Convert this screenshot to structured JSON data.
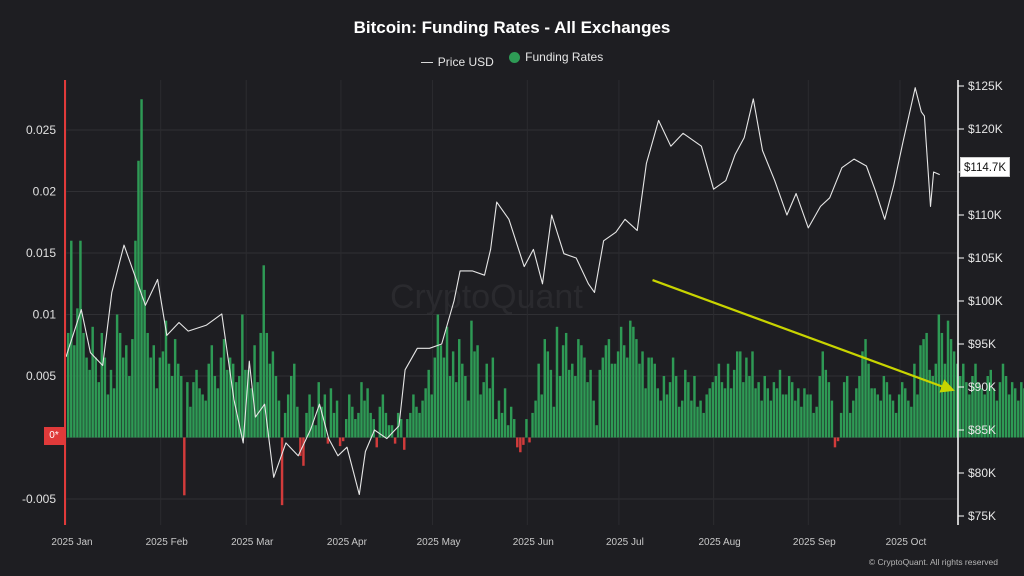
{
  "chart_data": {
    "type": "bar",
    "title": "Bitcoin: Funding Rates - All Exchanges",
    "legend": [
      "Price USD",
      "Funding Rates"
    ],
    "legend_placement": "top-center",
    "grid": true,
    "colors": {
      "positive": "#2e9a55",
      "negative": "#d23b3b",
      "price": "#e6e6e6",
      "trend": "#c8d400",
      "zero_badge": "#e03a3a",
      "left_axis": "#e03a3a"
    },
    "x_ticks": [
      "2025 Jan",
      "2025 Feb",
      "2025 Mar",
      "2025 Apr",
      "2025 May",
      "2025 Jun",
      "2025 Jul",
      "2025 Aug",
      "2025 Sep",
      "2025 Oct"
    ],
    "y_left": {
      "range": [
        -0.006,
        0.028
      ],
      "ticks": [
        -0.005,
        0,
        0.005,
        0.01,
        0.015,
        0.02,
        0.025
      ],
      "tick_labels": [
        "-0.005",
        "0*",
        "0.005",
        "0.01",
        "0.015",
        "0.02",
        "0.025"
      ]
    },
    "y_right": {
      "range": [
        75000,
        125000
      ],
      "ticks": [
        75000,
        80000,
        85000,
        90000,
        95000,
        100000,
        105000,
        110000,
        115000,
        120000,
        125000
      ],
      "tick_labels": [
        "$75K",
        "$80K",
        "$85K",
        "$90K",
        "$95K",
        "$100K",
        "$105K",
        "$110K",
        "$115K",
        "$120K",
        "$125K"
      ]
    },
    "current_price_label": "$114.7K",
    "series": [
      {
        "name": "Funding Rates",
        "axis": "left",
        "x_start": "2025-01-01",
        "values": [
          0.0085,
          0.016,
          0.0075,
          0.0105,
          0.016,
          0.0085,
          0.0065,
          0.0055,
          0.009,
          0.0065,
          0.0045,
          0.0085,
          0.0065,
          0.0035,
          0.0055,
          0.004,
          0.01,
          0.0085,
          0.0065,
          0.0075,
          0.005,
          0.008,
          0.016,
          0.0225,
          0.0275,
          0.012,
          0.0085,
          0.0065,
          0.0075,
          0.004,
          0.0065,
          0.007,
          0.0095,
          0.006,
          0.005,
          0.008,
          0.006,
          0.005,
          -0.0047,
          0.0045,
          0.0025,
          0.0045,
          0.0055,
          0.004,
          0.0035,
          0.003,
          0.006,
          0.0075,
          0.005,
          0.004,
          0.0065,
          0.008,
          0.0055,
          0.0065,
          0.006,
          0.0045,
          0.005,
          0.01,
          0.0055,
          0.0055,
          0.004,
          0.0075,
          0.0045,
          0.0085,
          0.014,
          0.0085,
          0.006,
          0.007,
          0.005,
          0.003,
          -0.0055,
          0.002,
          0.0035,
          0.005,
          0.006,
          0.0025,
          -0.0015,
          -0.0023,
          0.002,
          0.0035,
          0.0025,
          0.001,
          0.0045,
          0.0025,
          0.0035,
          -0.0005,
          0.004,
          0.002,
          0.003,
          -0.0007,
          -0.0003,
          0.0015,
          0.0035,
          0.0025,
          0.0015,
          0.002,
          0.0045,
          0.003,
          0.004,
          0.002,
          0.0015,
          -0.0008,
          0.0025,
          0.0035,
          0.002,
          0.001,
          0.001,
          -0.0005,
          0.002,
          0.0015,
          -0.001,
          0.0015,
          0.002,
          0.0035,
          0.0025,
          0.002,
          0.003,
          0.004,
          0.0055,
          0.0035,
          0.0065,
          0.01,
          0.0075,
          0.0065,
          0.009,
          0.005,
          0.007,
          0.0045,
          0.008,
          0.006,
          0.005,
          0.003,
          0.0095,
          0.007,
          0.0075,
          0.0035,
          0.0045,
          0.006,
          0.004,
          0.0065,
          0.0015,
          0.003,
          0.002,
          0.004,
          0.001,
          0.0025,
          0.0015,
          -0.0008,
          -0.0012,
          -0.0006,
          0.0015,
          -0.0004,
          0.002,
          0.003,
          0.006,
          0.0035,
          0.008,
          0.007,
          0.0055,
          0.0025,
          0.009,
          0.005,
          0.0075,
          0.0085,
          0.0055,
          0.006,
          0.005,
          0.008,
          0.0075,
          0.0065,
          0.0045,
          0.0055,
          0.003,
          0.001,
          0.0055,
          0.0065,
          0.0075,
          0.008,
          0.006,
          0.006,
          0.007,
          0.009,
          0.0075,
          0.0065,
          0.0095,
          0.009,
          0.008,
          0.006,
          0.007,
          0.004,
          0.0065,
          0.0065,
          0.006,
          0.004,
          0.003,
          0.005,
          0.0035,
          0.0045,
          0.0065,
          0.005,
          0.0025,
          0.003,
          0.0055,
          0.0045,
          0.003,
          0.005,
          0.0025,
          0.003,
          0.002,
          0.0035,
          0.004,
          0.0045,
          0.005,
          0.006,
          0.0045,
          0.004,
          0.006,
          0.004,
          0.0055,
          0.007,
          0.007,
          0.0045,
          0.0065,
          0.005,
          0.007,
          0.004,
          0.0045,
          0.003,
          0.005,
          0.004,
          0.003,
          0.0045,
          0.004,
          0.0055,
          0.0035,
          0.0035,
          0.005,
          0.0045,
          0.003,
          0.004,
          0.0025,
          0.004,
          0.0035,
          0.0035,
          0.002,
          0.0025,
          0.005,
          0.007,
          0.0055,
          0.0045,
          0.003,
          -0.0008,
          -0.0003,
          0.002,
          0.0045,
          0.005,
          0.002,
          0.003,
          0.004,
          0.005,
          0.007,
          0.008,
          0.006,
          0.004,
          0.004,
          0.0035,
          0.003,
          0.005,
          0.0045,
          0.0035,
          0.003,
          0.002,
          0.0035,
          0.0045,
          0.004,
          0.003,
          0.0025,
          0.006,
          0.0035,
          0.0075,
          0.008,
          0.0085,
          0.0055,
          0.005,
          0.006,
          0.01,
          0.0085,
          0.006,
          0.0095,
          0.008,
          0.007,
          0.006,
          0.005,
          0.006,
          0.0045,
          0.0035,
          0.005,
          0.006,
          0.0045,
          0.004,
          0.0035,
          0.005,
          0.0055,
          0.004,
          0.003,
          0.0045,
          0.006,
          0.005,
          0.0035,
          0.0045,
          0.004,
          0.003,
          0.0045,
          0.004,
          0.0035,
          0.005,
          0.0035,
          0.0025,
          0.003,
          0.004,
          0.0035,
          -0.0008,
          -0.0003,
          0.003,
          0.0045,
          0.0055,
          0.004,
          0.0045,
          0.011,
          0.0115,
          0.0105,
          0.0095,
          0.006,
          0.0055,
          0.005,
          0.004,
          0.0055,
          0.0045,
          0.0035,
          0.0035
        ]
      },
      {
        "name": "Price USD",
        "axis": "right",
        "points": [
          [
            "2025-01-01",
            93500
          ],
          [
            "2025-01-06",
            99000
          ],
          [
            "2025-01-09",
            94000
          ],
          [
            "2025-01-13",
            92500
          ],
          [
            "2025-01-16",
            101000
          ],
          [
            "2025-01-20",
            106500
          ],
          [
            "2025-01-23",
            103500
          ],
          [
            "2025-01-27",
            99500
          ],
          [
            "2025-01-31",
            102500
          ],
          [
            "2025-02-03",
            96000
          ],
          [
            "2025-02-07",
            97500
          ],
          [
            "2025-02-10",
            96500
          ],
          [
            "2025-02-16",
            97200
          ],
          [
            "2025-02-21",
            98500
          ],
          [
            "2025-02-25",
            88500
          ],
          [
            "2025-02-28",
            83500
          ],
          [
            "2025-03-02",
            93000
          ],
          [
            "2025-03-04",
            86500
          ],
          [
            "2025-03-07",
            88000
          ],
          [
            "2025-03-10",
            79500
          ],
          [
            "2025-03-14",
            83500
          ],
          [
            "2025-03-18",
            82000
          ],
          [
            "2025-03-22",
            85000
          ],
          [
            "2025-03-25",
            88000
          ],
          [
            "2025-03-28",
            84000
          ],
          [
            "2025-03-31",
            82000
          ],
          [
            "2025-04-03",
            83000
          ],
          [
            "2025-04-07",
            77500
          ],
          [
            "2025-04-09",
            82500
          ],
          [
            "2025-04-12",
            85000
          ],
          [
            "2025-04-16",
            84000
          ],
          [
            "2025-04-20",
            85500
          ],
          [
            "2025-04-22",
            92000
          ],
          [
            "2025-04-26",
            94500
          ],
          [
            "2025-04-30",
            94500
          ],
          [
            "2025-05-04",
            95000
          ],
          [
            "2025-05-08",
            100000
          ],
          [
            "2025-05-10",
            103500
          ],
          [
            "2025-05-14",
            103500
          ],
          [
            "2025-05-18",
            103000
          ],
          [
            "2025-05-20",
            106000
          ],
          [
            "2025-05-22",
            111500
          ],
          [
            "2025-05-26",
            109500
          ],
          [
            "2025-05-31",
            104000
          ],
          [
            "2025-06-03",
            106000
          ],
          [
            "2025-06-06",
            102000
          ],
          [
            "2025-06-09",
            110000
          ],
          [
            "2025-06-13",
            105500
          ],
          [
            "2025-06-17",
            105000
          ],
          [
            "2025-06-21",
            102000
          ],
          [
            "2025-06-23",
            101000
          ],
          [
            "2025-06-26",
            107000
          ],
          [
            "2025-06-30",
            108000
          ],
          [
            "2025-07-03",
            109500
          ],
          [
            "2025-07-07",
            108200
          ],
          [
            "2025-07-10",
            116000
          ],
          [
            "2025-07-14",
            121000
          ],
          [
            "2025-07-18",
            118000
          ],
          [
            "2025-07-22",
            119500
          ],
          [
            "2025-07-28",
            118000
          ],
          [
            "2025-08-01",
            113000
          ],
          [
            "2025-08-05",
            114000
          ],
          [
            "2025-08-08",
            117000
          ],
          [
            "2025-08-11",
            119000
          ],
          [
            "2025-08-14",
            123500
          ],
          [
            "2025-08-17",
            117500
          ],
          [
            "2025-08-21",
            114000
          ],
          [
            "2025-08-25",
            110000
          ],
          [
            "2025-08-28",
            112500
          ],
          [
            "2025-09-01",
            108500
          ],
          [
            "2025-09-05",
            111000
          ],
          [
            "2025-09-08",
            112000
          ],
          [
            "2025-09-12",
            115500
          ],
          [
            "2025-09-16",
            116500
          ],
          [
            "2025-09-20",
            115700
          ],
          [
            "2025-09-23",
            112800
          ],
          [
            "2025-09-26",
            109500
          ],
          [
            "2025-09-29",
            113500
          ],
          [
            "2025-10-02",
            118500
          ],
          [
            "2025-10-06",
            124800
          ],
          [
            "2025-10-08",
            122000
          ],
          [
            "2025-10-09",
            121500
          ],
          [
            "2025-10-11",
            111000
          ],
          [
            "2025-10-12",
            115000
          ],
          [
            "2025-10-14",
            114700
          ]
        ]
      }
    ],
    "trend_line": {
      "from": [
        "2025-07-12",
        0.0128
      ],
      "to": [
        "2025-10-19",
        0.0038
      ]
    }
  },
  "watermark": "CryptoQuant",
  "copyright": "© CryptoQuant. All rights reserved"
}
